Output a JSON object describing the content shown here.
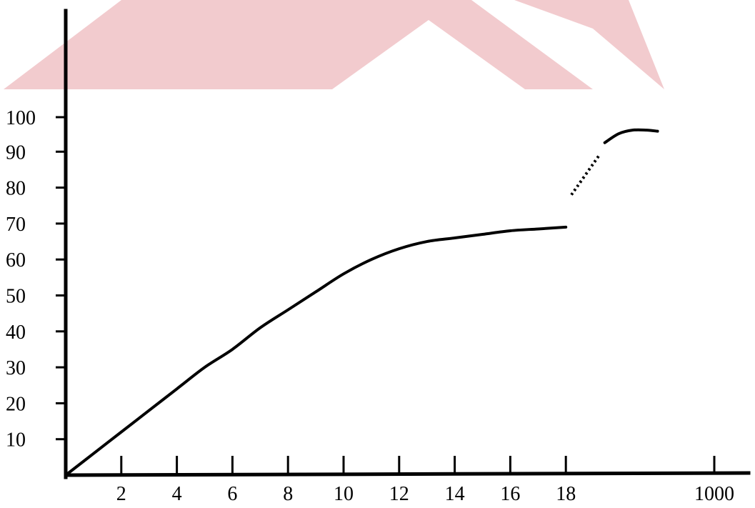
{
  "chart_data": {
    "type": "line",
    "title": "",
    "xlabel": "",
    "ylabel": "",
    "x_tick_labels": [
      "2",
      "4",
      "6",
      "8",
      "10",
      "12",
      "14",
      "16",
      "18",
      "1000"
    ],
    "y_tick_labels": [
      "100",
      "90",
      "80",
      "70",
      "60",
      "50",
      "40",
      "30",
      "20",
      "10"
    ],
    "xlim": [
      0,
      1000
    ],
    "ylim": [
      0,
      100
    ],
    "x_axis_note": "x axis is broken: linear 0-18, then jumps to 1000",
    "grid": false,
    "legend": "none",
    "series": [
      {
        "style": "solid",
        "points": [
          [
            0,
            0
          ],
          [
            1,
            6
          ],
          [
            2,
            12
          ],
          [
            3,
            18
          ],
          [
            4,
            24
          ],
          [
            5,
            30
          ],
          [
            6,
            35
          ],
          [
            7,
            41
          ],
          [
            8,
            46
          ],
          [
            9,
            51
          ],
          [
            10,
            56
          ],
          [
            11,
            60
          ],
          [
            12,
            63
          ],
          [
            13,
            65
          ],
          [
            14,
            66
          ],
          [
            15,
            67
          ],
          [
            16,
            68
          ],
          [
            17,
            68.5
          ],
          [
            18,
            69
          ]
        ]
      },
      {
        "style": "dotted",
        "points": [
          [
            18.2,
            78
          ],
          [
            19.2,
            89
          ]
        ]
      },
      {
        "style": "solid",
        "points": [
          [
            19.4,
            92.5
          ],
          [
            19.9,
            95
          ],
          [
            20.4,
            96
          ],
          [
            20.9,
            96
          ],
          [
            21.3,
            95.7
          ]
        ]
      }
    ]
  },
  "colors": {
    "line": "#000000",
    "background": "#ffffff",
    "watermark": "#e8a0a6"
  }
}
